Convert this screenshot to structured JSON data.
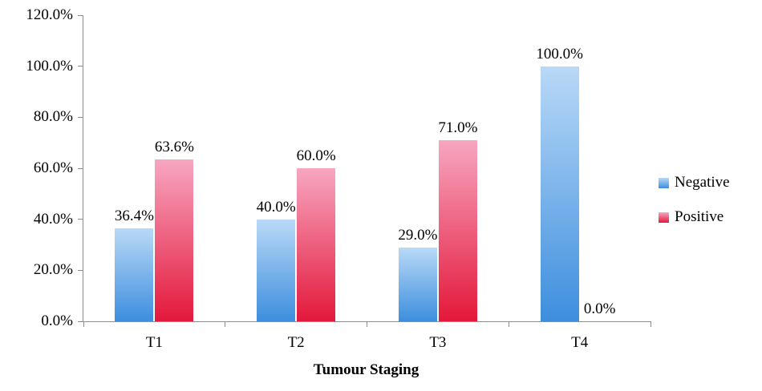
{
  "chart_data": {
    "type": "bar",
    "title": "",
    "xlabel": "Tumour Staging",
    "ylabel": "",
    "categories": [
      "T1",
      "T2",
      "T3",
      "T4"
    ],
    "series": [
      {
        "name": "Negative",
        "values": [
          36.4,
          40.0,
          29.0,
          100.0
        ],
        "labels": [
          "36.4%",
          "40.0%",
          "29.0%",
          "100.0%"
        ],
        "color_top": "#b9d9f7",
        "color_bottom": "#3d8ede"
      },
      {
        "name": "Positive",
        "values": [
          63.6,
          60.0,
          71.0,
          0.0
        ],
        "labels": [
          "63.6%",
          "60.0%",
          "71.0%",
          "0.0%"
        ],
        "color_top": "#f7a6c1",
        "color_bottom": "#e4183a"
      }
    ],
    "ylim": [
      0,
      120
    ],
    "ytick_step": 20,
    "ytick_labels": [
      "0.0%",
      "20.0%",
      "40.0%",
      "60.0%",
      "80.0%",
      "100.0%",
      "120.0%"
    ],
    "legend_position": "right",
    "grid": false,
    "axis_color": "#8c8c8c",
    "text_color": "#000000"
  }
}
